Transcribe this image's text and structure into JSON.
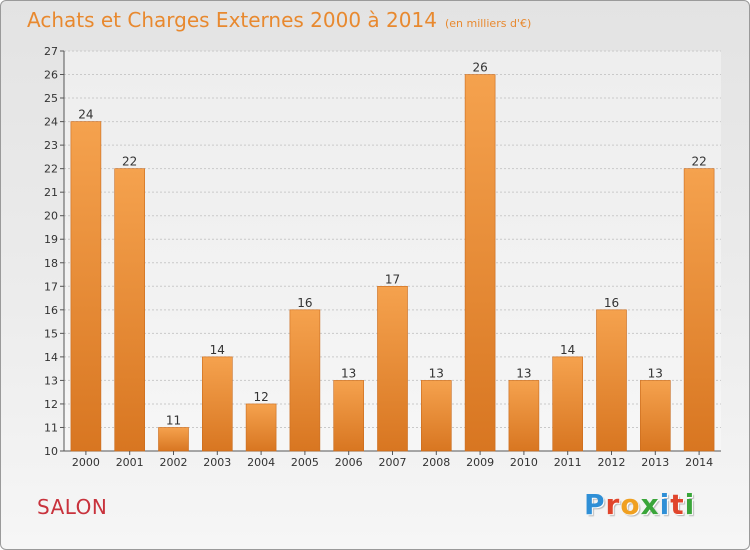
{
  "title": "Achats et Charges Externes 2000 à 2014",
  "subtitle": "(en milliers d'€)",
  "city": "SALON",
  "logo": [
    "P",
    "r",
    "o",
    "x",
    "i",
    "t",
    "i"
  ],
  "colors": {
    "title": "#e8892f",
    "bar_light": "#f5a24e",
    "bar_dark": "#d87621",
    "city": "#c8323c",
    "logo": [
      "#2f8fd6",
      "#e0452c",
      "#f0a020",
      "#3aa53a",
      "#2f8fd6",
      "#e0452c",
      "#3aa53a"
    ]
  },
  "chart_data": {
    "type": "bar",
    "title": "Achats et Charges Externes 2000 à 2014",
    "subtitle": "(en milliers d'€)",
    "categories": [
      "2000",
      "2001",
      "2002",
      "2003",
      "2004",
      "2005",
      "2006",
      "2007",
      "2008",
      "2009",
      "2010",
      "2011",
      "2012",
      "2013",
      "2014"
    ],
    "values": [
      24,
      22,
      11,
      14,
      12,
      16,
      13,
      17,
      13,
      26,
      13,
      14,
      16,
      13,
      22
    ],
    "ylim": [
      10,
      27
    ],
    "yticks": [
      10,
      11,
      12,
      13,
      14,
      15,
      16,
      17,
      18,
      19,
      20,
      21,
      22,
      23,
      24,
      25,
      26,
      27
    ],
    "grid": true,
    "xlabel": "",
    "ylabel": ""
  }
}
